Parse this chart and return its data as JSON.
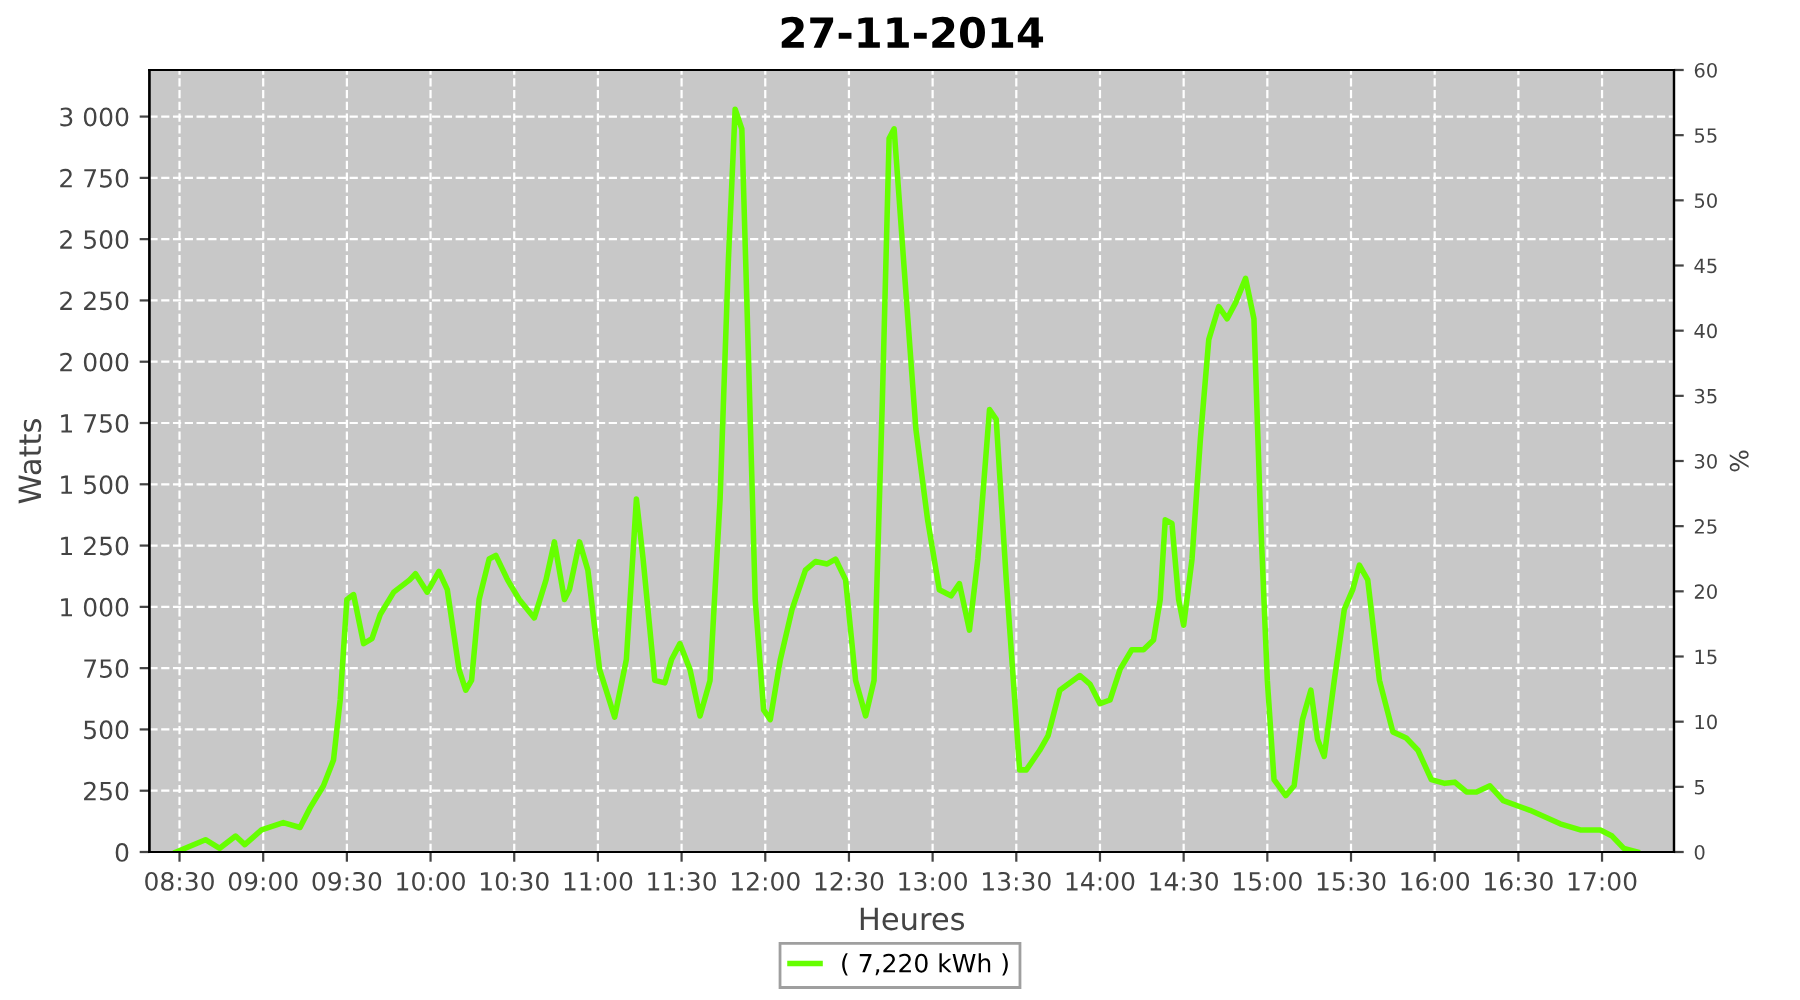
{
  "chart_data": {
    "type": "line",
    "title": "27-11-2014",
    "xlabel": "Heures",
    "ylabel": "Watts",
    "y2label": "%",
    "xlim": [
      8.32,
      17.43
    ],
    "ylim": [
      0,
      3190
    ],
    "y2lim": [
      0,
      60
    ],
    "xticks": [
      {
        "value": 8.5,
        "label": "08:30"
      },
      {
        "value": 9,
        "label": "09:00"
      },
      {
        "value": 9.5,
        "label": "09:30"
      },
      {
        "value": 10,
        "label": "10:00"
      },
      {
        "value": 10.5,
        "label": "10:30"
      },
      {
        "value": 11,
        "label": "11:00"
      },
      {
        "value": 11.5,
        "label": "11:30"
      },
      {
        "value": 12,
        "label": "12:00"
      },
      {
        "value": 12.5,
        "label": "12:30"
      },
      {
        "value": 13,
        "label": "13:00"
      },
      {
        "value": 13.5,
        "label": "13:30"
      },
      {
        "value": 14,
        "label": "14:00"
      },
      {
        "value": 14.5,
        "label": "14:30"
      },
      {
        "value": 15,
        "label": "15:00"
      },
      {
        "value": 15.5,
        "label": "15:30"
      },
      {
        "value": 16,
        "label": "16:00"
      },
      {
        "value": 16.5,
        "label": "16:30"
      },
      {
        "value": 17,
        "label": "17:00"
      }
    ],
    "yticks": [
      0,
      250,
      500,
      750,
      {
        "value": 1000,
        "label": "1 000"
      },
      {
        "value": 1250,
        "label": "1 250"
      },
      {
        "value": 1500,
        "label": "1 500"
      },
      {
        "value": 1750,
        "label": "1 750"
      },
      {
        "value": 2000,
        "label": "2 000"
      },
      {
        "value": 2250,
        "label": "2 250"
      },
      {
        "value": 2500,
        "label": "2 500"
      },
      {
        "value": 2750,
        "label": "2 750"
      },
      {
        "value": 3000,
        "label": "3 000"
      }
    ],
    "y2ticks": [
      0,
      5,
      10,
      15,
      20,
      25,
      30,
      35,
      40,
      45,
      50,
      55,
      60
    ],
    "grid": true,
    "legend": "bottom",
    "marker": "none",
    "line_style": "solid",
    "series": [
      {
        "name": "( 7,220 kWh )",
        "color": "#66ff00",
        "x": [
          8.48,
          8.655,
          8.74,
          8.835,
          8.89,
          8.99,
          9.12,
          9.22,
          9.28,
          9.36,
          9.42,
          9.46,
          9.5,
          9.54,
          9.6,
          9.65,
          9.7,
          9.78,
          9.875,
          9.91,
          9.98,
          10.05,
          10.1,
          10.17,
          10.21,
          10.245,
          10.29,
          10.35,
          10.39,
          10.46,
          10.53,
          10.62,
          10.69,
          10.74,
          10.8,
          10.83,
          10.89,
          10.94,
          11.01,
          11.1,
          11.17,
          11.23,
          11.27,
          11.34,
          11.4,
          11.44,
          11.49,
          11.55,
          11.61,
          11.67,
          11.73,
          11.78,
          11.82,
          11.86,
          11.9,
          11.94,
          11.99,
          12.03,
          12.09,
          12.16,
          12.24,
          12.3,
          12.37,
          12.42,
          12.48,
          12.54,
          12.6,
          12.65,
          12.7,
          12.74,
          12.77,
          12.83,
          12.9,
          12.97,
          13.04,
          13.11,
          13.16,
          13.22,
          13.27,
          13.34,
          13.38,
          13.44,
          13.52,
          13.56,
          13.64,
          13.69,
          13.76,
          13.88,
          13.94,
          14.0,
          14.06,
          14.12,
          14.19,
          14.26,
          14.32,
          14.36,
          14.39,
          14.43,
          14.47,
          14.5,
          14.55,
          14.6,
          14.65,
          14.71,
          14.76,
          14.81,
          14.87,
          14.92,
          14.96,
          15.0,
          15.04,
          15.11,
          15.16,
          15.21,
          15.26,
          15.3,
          15.34,
          15.4,
          15.46,
          15.51,
          15.55,
          15.6,
          15.67,
          15.75,
          15.83,
          15.9,
          15.98,
          16.06,
          16.12,
          16.19,
          16.25,
          16.33,
          16.41,
          16.57,
          16.75,
          16.87,
          16.99,
          17.06,
          17.13,
          17.21
        ],
        "values": [
          0,
          50,
          15,
          65,
          30,
          90,
          120,
          100,
          180,
          270,
          375,
          620,
          1030,
          1050,
          850,
          870,
          970,
          1060,
          1110,
          1135,
          1060,
          1145,
          1070,
          745,
          660,
          700,
          1030,
          1195,
          1210,
          1110,
          1030,
          955,
          1110,
          1265,
          1030,
          1070,
          1265,
          1150,
          745,
          550,
          785,
          1440,
          1195,
          700,
          690,
          785,
          850,
          745,
          555,
          700,
          1440,
          2420,
          3030,
          2950,
          2010,
          1030,
          580,
          540,
          785,
          990,
          1150,
          1185,
          1175,
          1195,
          1110,
          700,
          555,
          700,
          1850,
          2910,
          2950,
          2380,
          1725,
          1355,
          1070,
          1045,
          1095,
          905,
          1195,
          1805,
          1765,
          1110,
          335,
          335,
          415,
          475,
          660,
          720,
          685,
          605,
          620,
          745,
          825,
          825,
          865,
          1030,
          1355,
          1340,
          1030,
          925,
          1195,
          1685,
          2090,
          2225,
          2175,
          2240,
          2340,
          2175,
          1355,
          700,
          295,
          230,
          270,
          540,
          660,
          460,
          390,
          700,
          990,
          1070,
          1170,
          1110,
          700,
          490,
          465,
          415,
          295,
          280,
          285,
          245,
          245,
          270,
          210,
          170,
          115,
          90,
          90,
          65,
          15,
          0
        ]
      }
    ]
  }
}
